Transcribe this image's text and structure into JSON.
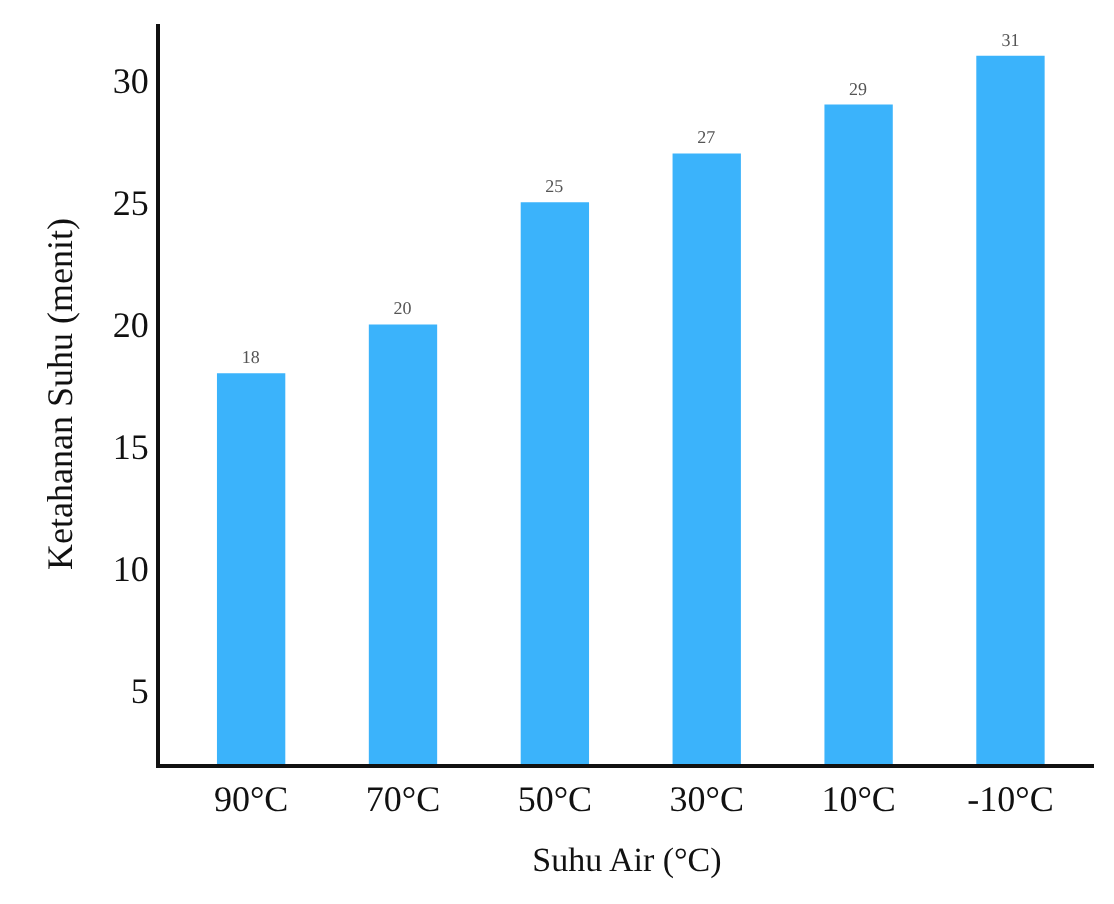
{
  "chart_data": {
    "type": "bar",
    "xlabel": "Suhu Air (°C)",
    "ylabel": "Ketahanan Suhu (menit)",
    "categories": [
      "90°C",
      "70°C",
      "50°C",
      "30°C",
      "10°C",
      "-10°C"
    ],
    "values": [
      18,
      20,
      25,
      27,
      29,
      31
    ],
    "color": "#3bb3fb",
    "data_labels": true,
    "ylim": [
      2,
      32.3
    ],
    "yticks": [
      5,
      10,
      15,
      20,
      25,
      30
    ]
  }
}
